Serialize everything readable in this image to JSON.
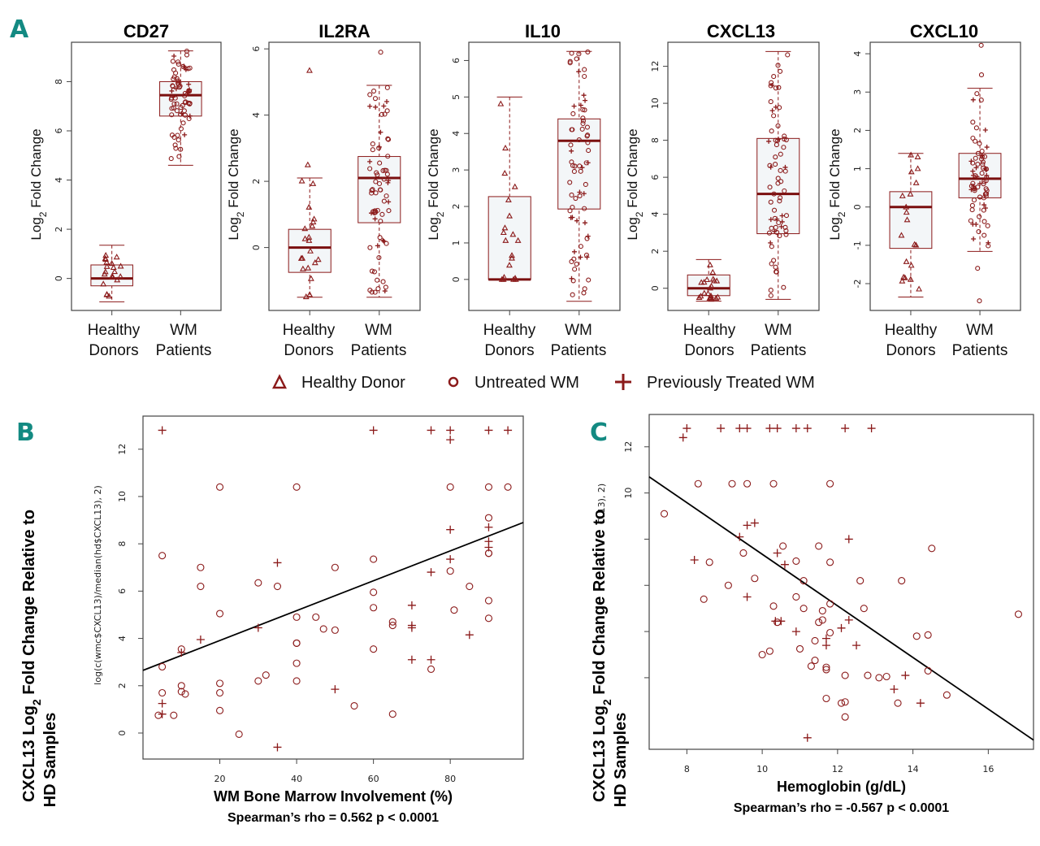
{
  "colors": {
    "marker": "#8b1a1a",
    "box_fill": "#f3f6f8",
    "panel_letter": "#138a82",
    "fit_line": "#000000"
  },
  "legend": {
    "items": [
      {
        "symbol": "triangle",
        "label": "Healthy Donor"
      },
      {
        "symbol": "circle",
        "label": "Untreated WM"
      },
      {
        "symbol": "plus",
        "label": "Previously Treated WM"
      }
    ]
  },
  "chart_data": [
    {
      "type": "box",
      "panel": "A",
      "title": "CD27",
      "ylabel": "Log2 Fold Change",
      "categories": [
        "Healthy Donors",
        "WM Patients"
      ],
      "ylim": [
        -1.3,
        9.6
      ],
      "yticks": [
        0,
        2,
        4,
        6,
        8
      ],
      "boxes": [
        {
          "min": -0.95,
          "q1": -0.3,
          "median": 0,
          "q3": 0.55,
          "max": 1.35
        },
        {
          "min": 4.6,
          "q1": 6.6,
          "median": 7.45,
          "q3": 8.0,
          "max": 9.25
        }
      ]
    },
    {
      "type": "box",
      "panel": "A",
      "title": "IL2RA",
      "ylabel": "Log2 Fold Change",
      "categories": [
        "Healthy Donors",
        "WM Patients"
      ],
      "ylim": [
        -1.9,
        6.2
      ],
      "yticks": [
        0,
        2,
        4,
        6
      ],
      "boxes": [
        {
          "min": -1.5,
          "q1": -0.75,
          "median": 0,
          "q3": 0.55,
          "max": 2.1,
          "outliers": [
            2.5,
            5.35
          ]
        },
        {
          "min": -1.5,
          "q1": 0.75,
          "median": 2.1,
          "q3": 2.75,
          "max": 4.9,
          "outliers": [
            5.9
          ]
        }
      ]
    },
    {
      "type": "box",
      "panel": "A",
      "title": "IL10",
      "ylabel": "Log2 Fold Change",
      "categories": [
        "Healthy Donors",
        "WM Patients"
      ],
      "ylim": [
        -0.85,
        6.5
      ],
      "yticks": [
        0,
        1,
        2,
        3,
        4,
        5,
        6
      ],
      "boxes": [
        {
          "min": 0,
          "q1": 0,
          "median": 0,
          "q3": 2.27,
          "max": 5.0
        },
        {
          "min": -0.6,
          "q1": 1.93,
          "median": 3.8,
          "q3": 4.4,
          "max": 6.25
        }
      ]
    },
    {
      "type": "box",
      "panel": "A",
      "title": "CXCL13",
      "ylabel": "Log2 Fold Change",
      "categories": [
        "Healthy Donors",
        "WM Patients"
      ],
      "ylim": [
        -1.2,
        13.3
      ],
      "yticks": [
        0,
        2,
        4,
        6,
        8,
        10,
        12
      ],
      "boxes": [
        {
          "min": -0.7,
          "q1": -0.4,
          "median": 0,
          "q3": 0.72,
          "max": 1.55
        },
        {
          "min": -0.6,
          "q1": 2.95,
          "median": 5.1,
          "q3": 8.1,
          "max": 12.8
        }
      ]
    },
    {
      "type": "box",
      "panel": "A",
      "title": "CXCL10",
      "ylabel": "Log2 Fold Change",
      "categories": [
        "Healthy Donors",
        "WM Patients"
      ],
      "ylim": [
        -2.7,
        4.3
      ],
      "yticks": [
        -2,
        -1,
        0,
        1,
        2,
        3,
        4
      ],
      "boxes": [
        {
          "min": -2.35,
          "q1": -1.08,
          "median": 0,
          "q3": 0.4,
          "max": 1.4
        },
        {
          "min": -1.16,
          "q1": 0.24,
          "median": 0.74,
          "q3": 1.4,
          "max": 3.1,
          "outliers": [
            3.45,
            4.22,
            -1.6,
            -2.45
          ]
        }
      ]
    },
    {
      "type": "scatter",
      "panel": "B",
      "xlabel": "WM Bone Marrow Involvement (%)",
      "ylabel": "CXCL13 Log2 Fold Change Relative to HD Samples",
      "inner_ylabel": "log(c(wmc$CXCL13)/median(hd$CXCL13), 2)",
      "stat": "Spearman’s rho = 0.562  p < 0.0001",
      "xlim": [
        0,
        99
      ],
      "ylim": [
        -1.1,
        13.4
      ],
      "xticks": [
        20,
        40,
        60,
        80
      ],
      "yticks": [
        0,
        2,
        4,
        6,
        8,
        10,
        12
      ],
      "fit": {
        "x": [
          0,
          99
        ],
        "y": [
          2.65,
          8.9
        ]
      },
      "untreated": [
        [
          5,
          7.5
        ],
        [
          5,
          2.8
        ],
        [
          5,
          1.7
        ],
        [
          4,
          0.75
        ],
        [
          8,
          0.75
        ],
        [
          10,
          3.55
        ],
        [
          10,
          2.0
        ],
        [
          10,
          1.75
        ],
        [
          11,
          1.65
        ],
        [
          15,
          7.0
        ],
        [
          15,
          6.2
        ],
        [
          20,
          10.4
        ],
        [
          20,
          5.05
        ],
        [
          20,
          2.1
        ],
        [
          20,
          1.7
        ],
        [
          20,
          0.95
        ],
        [
          25,
          -0.05
        ],
        [
          30,
          6.35
        ],
        [
          30,
          2.2
        ],
        [
          32,
          2.45
        ],
        [
          35,
          6.2
        ],
        [
          40,
          10.4
        ],
        [
          40,
          4.9
        ],
        [
          40,
          3.8
        ],
        [
          40,
          3.8
        ],
        [
          40,
          2.95
        ],
        [
          40,
          2.2
        ],
        [
          45,
          4.9
        ],
        [
          47,
          4.4
        ],
        [
          50,
          7.0
        ],
        [
          50,
          4.35
        ],
        [
          55,
          1.15
        ],
        [
          60,
          7.35
        ],
        [
          60,
          5.95
        ],
        [
          60,
          5.3
        ],
        [
          60,
          3.55
        ],
        [
          65,
          4.7
        ],
        [
          65,
          4.55
        ],
        [
          65,
          0.8
        ],
        [
          75,
          2.7
        ],
        [
          80,
          10.4
        ],
        [
          80,
          6.85
        ],
        [
          81,
          5.2
        ],
        [
          85,
          6.2
        ],
        [
          90,
          10.4
        ],
        [
          90,
          9.1
        ],
        [
          90,
          7.6
        ],
        [
          90,
          7.6
        ],
        [
          90,
          5.6
        ],
        [
          90,
          4.85
        ],
        [
          95,
          10.4
        ]
      ],
      "treated": [
        [
          5,
          12.8
        ],
        [
          5,
          1.25
        ],
        [
          5,
          0.8
        ],
        [
          10,
          3.4
        ],
        [
          15,
          3.95
        ],
        [
          30,
          4.45
        ],
        [
          35,
          7.2
        ],
        [
          35,
          -0.6
        ],
        [
          50,
          1.85
        ],
        [
          60,
          12.8
        ],
        [
          70,
          5.4
        ],
        [
          70,
          4.55
        ],
        [
          70,
          4.45
        ],
        [
          70,
          3.1
        ],
        [
          75,
          12.8
        ],
        [
          75,
          6.8
        ],
        [
          75,
          3.1
        ],
        [
          80,
          12.8
        ],
        [
          80,
          12.4
        ],
        [
          80,
          8.6
        ],
        [
          80,
          7.35
        ],
        [
          85,
          4.15
        ],
        [
          90,
          12.8
        ],
        [
          90,
          8.7
        ],
        [
          90,
          8.1
        ],
        [
          90,
          7.85
        ],
        [
          95,
          12.8
        ]
      ]
    },
    {
      "type": "scatter",
      "panel": "C",
      "xlabel": "Hemoglobin (g/dL)",
      "ylabel": "CXCL13 Log2 Fold Change Relative to HD Samples",
      "inner_ylabel": "CL13), 2)",
      "stat": "Spearman’s rho = -0.567  p < 0.0001",
      "xlim": [
        7.0,
        17.2
      ],
      "ylim": [
        -1.1,
        13.4
      ],
      "xticks": [
        8,
        10,
        12,
        14,
        16
      ],
      "yticks": [
        10,
        12
      ],
      "fit": {
        "x": [
          7.0,
          17.2
        ],
        "y": [
          10.7,
          -0.7
        ]
      },
      "untreated": [
        [
          7.4,
          9.1
        ],
        [
          8.3,
          10.4
        ],
        [
          8.45,
          5.4
        ],
        [
          8.6,
          7.0
        ],
        [
          9.1,
          6.0
        ],
        [
          9.2,
          10.4
        ],
        [
          9.5,
          7.4
        ],
        [
          9.6,
          10.4
        ],
        [
          9.8,
          6.3
        ],
        [
          10.0,
          3.0
        ],
        [
          10.2,
          3.15
        ],
        [
          10.3,
          10.4
        ],
        [
          10.3,
          5.1
        ],
        [
          10.4,
          4.4
        ],
        [
          10.55,
          7.7
        ],
        [
          10.9,
          7.05
        ],
        [
          10.9,
          5.5
        ],
        [
          11.0,
          3.25
        ],
        [
          11.1,
          6.2
        ],
        [
          11.1,
          5.0
        ],
        [
          11.3,
          2.5
        ],
        [
          11.4,
          2.75
        ],
        [
          11.4,
          3.6
        ],
        [
          11.5,
          4.4
        ],
        [
          11.5,
          7.7
        ],
        [
          11.6,
          4.9
        ],
        [
          11.6,
          4.5
        ],
        [
          11.7,
          2.45
        ],
        [
          11.7,
          2.35
        ],
        [
          11.7,
          1.1
        ],
        [
          11.8,
          10.4
        ],
        [
          11.8,
          7.0
        ],
        [
          11.8,
          5.2
        ],
        [
          11.8,
          3.95
        ],
        [
          12.1,
          0.9
        ],
        [
          12.2,
          2.1
        ],
        [
          12.2,
          0.95
        ],
        [
          12.2,
          0.3
        ],
        [
          12.6,
          6.2
        ],
        [
          12.7,
          5.0
        ],
        [
          12.8,
          2.1
        ],
        [
          13.1,
          2.0
        ],
        [
          13.3,
          2.05
        ],
        [
          13.6,
          0.9
        ],
        [
          13.7,
          6.2
        ],
        [
          14.1,
          3.8
        ],
        [
          14.4,
          3.85
        ],
        [
          14.4,
          2.3
        ],
        [
          14.5,
          7.6
        ],
        [
          14.9,
          1.25
        ],
        [
          16.8,
          4.75
        ]
      ],
      "treated": [
        [
          7.9,
          12.4
        ],
        [
          8.0,
          12.8
        ],
        [
          8.2,
          7.1
        ],
        [
          8.9,
          12.8
        ],
        [
          9.4,
          8.1
        ],
        [
          9.4,
          12.8
        ],
        [
          9.6,
          12.8
        ],
        [
          9.6,
          8.6
        ],
        [
          9.6,
          5.5
        ],
        [
          9.8,
          8.7
        ],
        [
          10.2,
          12.8
        ],
        [
          10.4,
          12.8
        ],
        [
          10.4,
          7.4
        ],
        [
          10.5,
          4.45
        ],
        [
          10.6,
          6.9
        ],
        [
          10.35,
          4.45
        ],
        [
          10.9,
          12.8
        ],
        [
          10.9,
          4.0
        ],
        [
          11.2,
          12.8
        ],
        [
          11.2,
          -0.6
        ],
        [
          11.7,
          3.7
        ],
        [
          11.7,
          3.4
        ],
        [
          12.1,
          4.15
        ],
        [
          12.2,
          12.8
        ],
        [
          12.3,
          8.0
        ],
        [
          12.3,
          4.5
        ],
        [
          12.5,
          3.4
        ],
        [
          12.9,
          12.8
        ],
        [
          13.5,
          1.5
        ],
        [
          13.8,
          2.1
        ],
        [
          14.2,
          0.9
        ]
      ]
    }
  ]
}
